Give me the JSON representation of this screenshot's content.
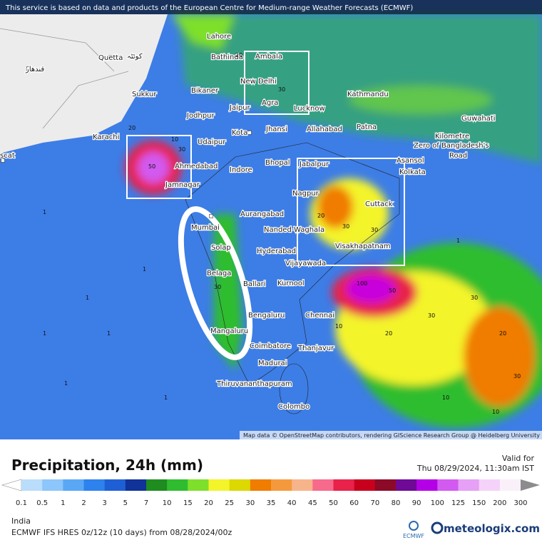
{
  "header": {
    "notice": "This service is based on data and products of the European Centre for Medium-range Weather Forecasts (ECMWF)"
  },
  "map": {
    "attribution": "Map data © OpenStreetMap contributors, rendering GIScience Research Group @ Heidelberg University",
    "places": [
      "Lahore",
      "Quetta",
      "کوئٹہ",
      "قندهار",
      "Bathinda",
      "Ambala",
      "Bikaner",
      "Sukkur",
      "New Delhi",
      "Jaipur",
      "Agra",
      "Lucknow",
      "Kathmandu",
      "Jodhpur",
      "Karachi",
      "Kota",
      "Jhansi",
      "Allahabad",
      "Patna",
      "Guwahati",
      "Udaipur",
      "Ahmedabad",
      "Indore",
      "Bhopal",
      "Jabalpur",
      "Kilometre",
      "Zero of Bangladesh's",
      "Road",
      "Asansol",
      "Kolkata",
      "Jamnagar",
      "Nagpur",
      "Cuttack",
      "Aurangabad",
      "Mumbai",
      "Nanded-Waghala",
      "Solap",
      "Hyderabad",
      "Visakhapatnam",
      "Vijayawada",
      "Belaga",
      "Ballari",
      "Kurnool",
      "Bengaluru",
      "Chennai",
      "Mangaluru",
      "Coimbatore",
      "Thanjavur",
      "Madurai",
      "Thiruvananthapuram",
      "Colombo",
      "scat"
    ],
    "contour_labels": [
      "20",
      "30",
      "50",
      "10",
      "20",
      "30",
      "30",
      "100",
      "50",
      "20",
      "30",
      "30",
      "20",
      "10",
      "30",
      "30",
      "20",
      "30",
      "10",
      "10",
      "1",
      "1",
      "1",
      "1",
      "1",
      "1",
      "1",
      "1"
    ]
  },
  "legend": {
    "title": "Precipitation, 24h (mm)",
    "valid_label": "Valid for",
    "valid_time": "Thu 08/29/2024, 11:30am IST",
    "ticks": [
      "0.1",
      "0.5",
      "1",
      "2",
      "3",
      "5",
      "7",
      "10",
      "15",
      "20",
      "25",
      "30",
      "35",
      "40",
      "45",
      "50",
      "60",
      "70",
      "80",
      "90",
      "100",
      "125",
      "150",
      "200",
      "300"
    ],
    "colors": [
      "#ffffff",
      "#b9ddfb",
      "#8cc6fa",
      "#5aa8f5",
      "#2d82ee",
      "#1f5fd6",
      "#10339a",
      "#1e8c1e",
      "#2fbd2f",
      "#7ee02a",
      "#f4f42a",
      "#dcd800",
      "#f07c00",
      "#f59a3c",
      "#f7b48a",
      "#f76a8c",
      "#e8224a",
      "#c8001e",
      "#8c0a28",
      "#6e0a96",
      "#b400e6",
      "#d25af0",
      "#e6a0f5",
      "#f5d2fa",
      "#faf0fa",
      "#d2d2d2",
      "#8c8c8c"
    ],
    "region": "India",
    "model": "ECMWF IFS HRES 0z/12z (10 days) from 08/28/2024/00z",
    "logo_ecmwf": "ECMWF",
    "logo_site": "meteologix.com"
  }
}
